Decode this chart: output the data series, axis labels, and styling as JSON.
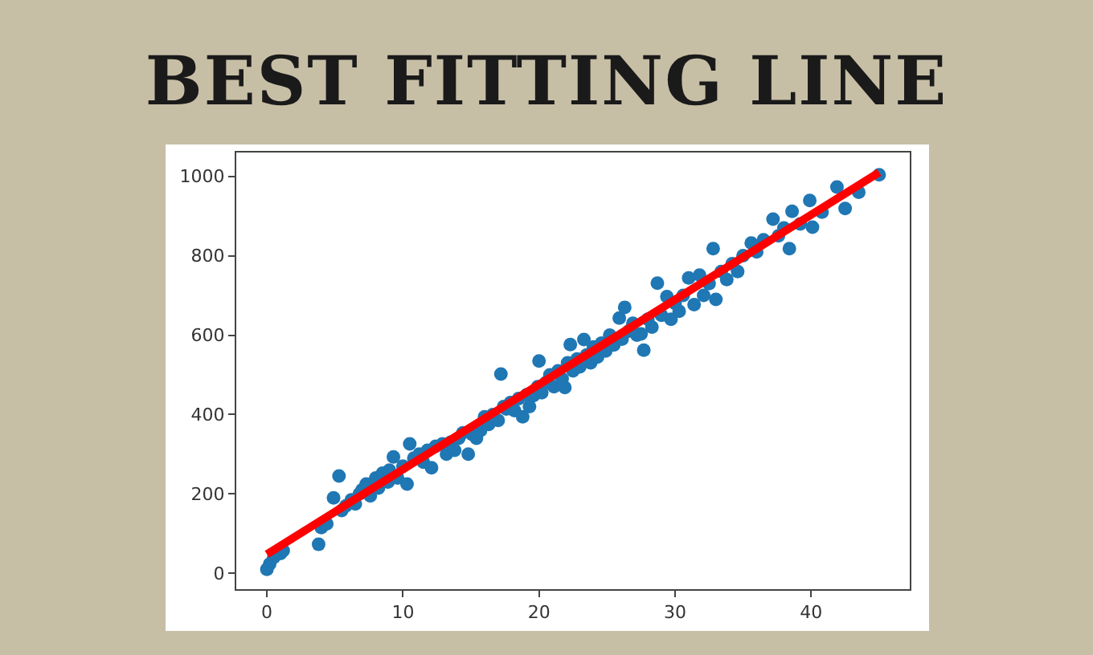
{
  "chart_data": {
    "type": "scatter",
    "title": "BEST FITTING LINE",
    "series": [
      {
        "color": "#1f77b4",
        "marker": "circle",
        "x": [
          0,
          0.2,
          0.5,
          1.0,
          1.2,
          3.8,
          4.0,
          4.4,
          4.9,
          5.3,
          5.5,
          5.8,
          6.2,
          6.5,
          6.8,
          7.0,
          7.3,
          7.6,
          8.0,
          8.2,
          8.5,
          8.9,
          9.0,
          9.3,
          9.6,
          10.0,
          10.3,
          10.5,
          10.8,
          11.2,
          11.5,
          11.8,
          12.1,
          12.4,
          12.9,
          13.2,
          13.5,
          13.8,
          14.1,
          14.4,
          14.8,
          15.1,
          15.4,
          15.7,
          16.0,
          16.3,
          16.6,
          17.0,
          17.2,
          17.4,
          17.6,
          17.9,
          18.2,
          18.5,
          18.8,
          19.1,
          19.3,
          19.6,
          19.9,
          20.0,
          20.2,
          20.5,
          20.8,
          21.1,
          21.4,
          21.7,
          21.9,
          22.1,
          22.3,
          22.5,
          22.8,
          23.0,
          23.3,
          23.5,
          23.8,
          24.0,
          24.3,
          24.6,
          24.9,
          25.2,
          25.5,
          25.9,
          26.1,
          26.3,
          26.6,
          26.9,
          27.2,
          27.5,
          27.7,
          28.0,
          28.3,
          28.7,
          29.0,
          29.4,
          29.7,
          30.0,
          30.3,
          30.6,
          31.0,
          31.4,
          31.8,
          32.1,
          32.5,
          32.8,
          33.0,
          33.4,
          33.8,
          34.2,
          34.6,
          35.0,
          35.6,
          36.0,
          36.5,
          37.2,
          37.6,
          38.0,
          38.4,
          38.6,
          39.2,
          39.9,
          40.1,
          40.8,
          41.9,
          42.5,
          43.5,
          45.0
        ],
        "values": [
          10,
          23,
          40,
          50,
          57,
          73,
          115,
          125,
          190,
          245,
          158,
          170,
          185,
          175,
          200,
          210,
          225,
          195,
          240,
          215,
          252,
          230,
          260,
          293,
          240,
          270,
          225,
          326,
          290,
          300,
          280,
          310,
          266,
          320,
          326,
          300,
          330,
          310,
          340,
          354,
          300,
          350,
          340,
          360,
          394,
          375,
          400,
          385,
          502,
          420,
          414,
          430,
          410,
          440,
          394,
          450,
          420,
          448,
          470,
          535,
          455,
          480,
          500,
          470,
          510,
          490,
          468,
          530,
          576,
          510,
          540,
          520,
          589,
          550,
          530,
          570,
          545,
          580,
          560,
          600,
          575,
          643,
          590,
          670,
          610,
          630,
          600,
          603,
          562,
          640,
          620,
          731,
          650,
          697,
          640,
          680,
          660,
          700,
          744,
          677,
          751,
          700,
          730,
          818,
          690,
          760,
          740,
          780,
          760,
          800,
          832,
          810,
          840,
          892,
          850,
          870,
          818,
          912,
          880,
          939,
          872,
          910,
          973,
          919,
          960,
          1004
        ]
      },
      {
        "type": "line",
        "color": "#ff0000",
        "x": [
          0,
          45
        ],
        "values": [
          48,
          1010
        ]
      }
    ],
    "xlim": [
      -2.25,
      47.25
    ],
    "ylim": [
      -40,
      1060
    ],
    "xticks": [
      0,
      10,
      20,
      30,
      40
    ],
    "yticks": [
      0,
      200,
      400,
      600,
      800,
      1000
    ]
  }
}
